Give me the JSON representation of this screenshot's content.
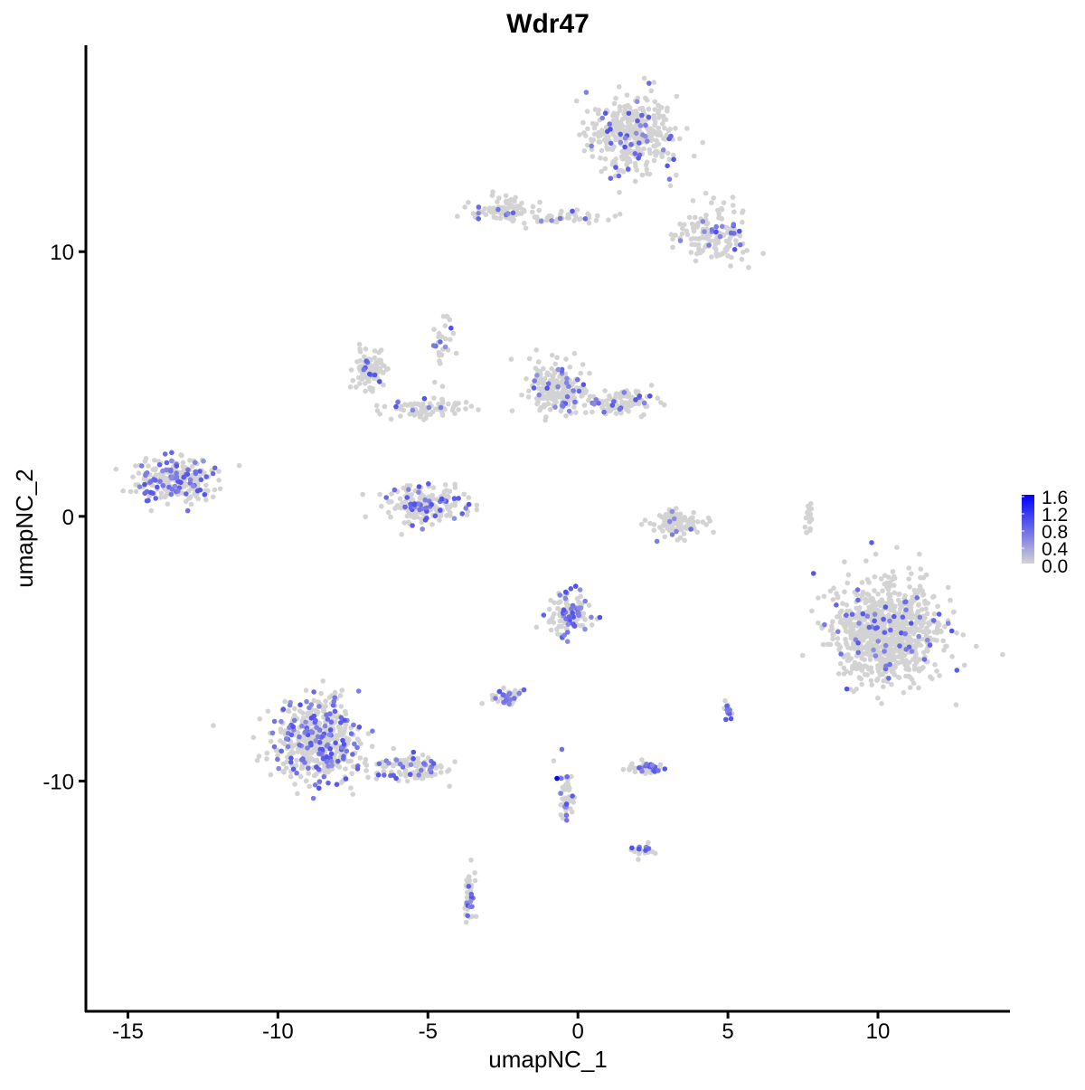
{
  "chart_data": {
    "type": "scatter",
    "title": "Wdr47",
    "xlabel": "umapNC_1",
    "ylabel": "umapNC_2",
    "xlim": [
      -16.4,
      14.4
    ],
    "ylim": [
      -18.7,
      17.8
    ],
    "x_ticks": [
      -15,
      -10,
      -5,
      0,
      5,
      10
    ],
    "x_tick_labels": [
      "-15",
      "-10",
      "-5",
      "0",
      "5",
      "10"
    ],
    "y_ticks": [
      -10,
      0,
      10
    ],
    "y_tick_labels": [
      "-10",
      "0",
      "10"
    ],
    "grid": false,
    "legend": {
      "placement": "right",
      "type": "colorbar",
      "range": [
        0.0,
        1.6
      ],
      "tick_labels": [
        "1.6",
        "1.2",
        "0.8",
        "0.4",
        "0.0"
      ],
      "low_color": "#d3d3d3",
      "high_color": "#0000ff"
    },
    "clusters": [
      {
        "center": [
          1.8,
          14.4
        ],
        "spread": [
          1.2,
          1.2
        ],
        "n": 350,
        "expressing_fraction": 0.1
      },
      {
        "center": [
          4.5,
          10.6
        ],
        "spread": [
          1.0,
          1.0
        ],
        "n": 150,
        "expressing_fraction": 0.08
      },
      {
        "center": [
          -2.4,
          11.6
        ],
        "spread": [
          0.8,
          0.4
        ],
        "n": 80,
        "expressing_fraction": 0.1
      },
      {
        "center": [
          -0.6,
          11.3
        ],
        "spread": [
          1.5,
          0.2
        ],
        "n": 50,
        "expressing_fraction": 0.1
      },
      {
        "center": [
          -13.4,
          1.4
        ],
        "spread": [
          1.0,
          0.7
        ],
        "n": 250,
        "expressing_fraction": 0.25
      },
      {
        "center": [
          -6.9,
          5.5
        ],
        "spread": [
          0.5,
          0.5
        ],
        "n": 100,
        "expressing_fraction": 0.12
      },
      {
        "center": [
          -5.1,
          4.1
        ],
        "spread": [
          1.0,
          0.3
        ],
        "n": 80,
        "expressing_fraction": 0.12
      },
      {
        "center": [
          -5.1,
          0.4
        ],
        "spread": [
          1.1,
          0.6
        ],
        "n": 200,
        "expressing_fraction": 0.18
      },
      {
        "center": [
          -0.6,
          4.8
        ],
        "spread": [
          0.8,
          0.9
        ],
        "n": 200,
        "expressing_fraction": 0.08
      },
      {
        "center": [
          1.5,
          4.3
        ],
        "spread": [
          1.0,
          0.4
        ],
        "n": 120,
        "expressing_fraction": 0.1
      },
      {
        "center": [
          3.3,
          -0.3
        ],
        "spread": [
          0.7,
          0.4
        ],
        "n": 100,
        "expressing_fraction": 0.05
      },
      {
        "center": [
          10.3,
          -4.4
        ],
        "spread": [
          1.5,
          1.5
        ],
        "n": 900,
        "expressing_fraction": 0.06
      },
      {
        "center": [
          -8.7,
          -8.5
        ],
        "spread": [
          1.2,
          1.3
        ],
        "n": 500,
        "expressing_fraction": 0.25
      },
      {
        "center": [
          -5.4,
          -9.5
        ],
        "spread": [
          1.0,
          0.4
        ],
        "n": 100,
        "expressing_fraction": 0.2
      },
      {
        "center": [
          -0.3,
          -3.7
        ],
        "spread": [
          0.6,
          0.7
        ],
        "n": 120,
        "expressing_fraction": 0.25
      },
      {
        "center": [
          -2.4,
          -6.8
        ],
        "spread": [
          0.4,
          0.3
        ],
        "n": 50,
        "expressing_fraction": 0.3
      },
      {
        "center": [
          2.3,
          -9.5
        ],
        "spread": [
          0.6,
          0.2
        ],
        "n": 50,
        "expressing_fraction": 0.3
      },
      {
        "center": [
          -0.4,
          -10.5
        ],
        "spread": [
          0.2,
          1.0
        ],
        "n": 50,
        "expressing_fraction": 0.2
      },
      {
        "center": [
          -3.6,
          -14.3
        ],
        "spread": [
          0.2,
          0.8
        ],
        "n": 40,
        "expressing_fraction": 0.3
      },
      {
        "center": [
          5.0,
          -7.3
        ],
        "spread": [
          0.15,
          0.3
        ],
        "n": 20,
        "expressing_fraction": 0.6
      },
      {
        "center": [
          7.7,
          0.0
        ],
        "spread": [
          0.15,
          0.6
        ],
        "n": 20,
        "expressing_fraction": 0.0
      },
      {
        "center": [
          -4.5,
          6.5
        ],
        "spread": [
          0.3,
          1.0
        ],
        "n": 30,
        "expressing_fraction": 0.1
      },
      {
        "center": [
          2.2,
          -12.6
        ],
        "spread": [
          0.3,
          0.2
        ],
        "n": 20,
        "expressing_fraction": 0.3
      }
    ]
  }
}
